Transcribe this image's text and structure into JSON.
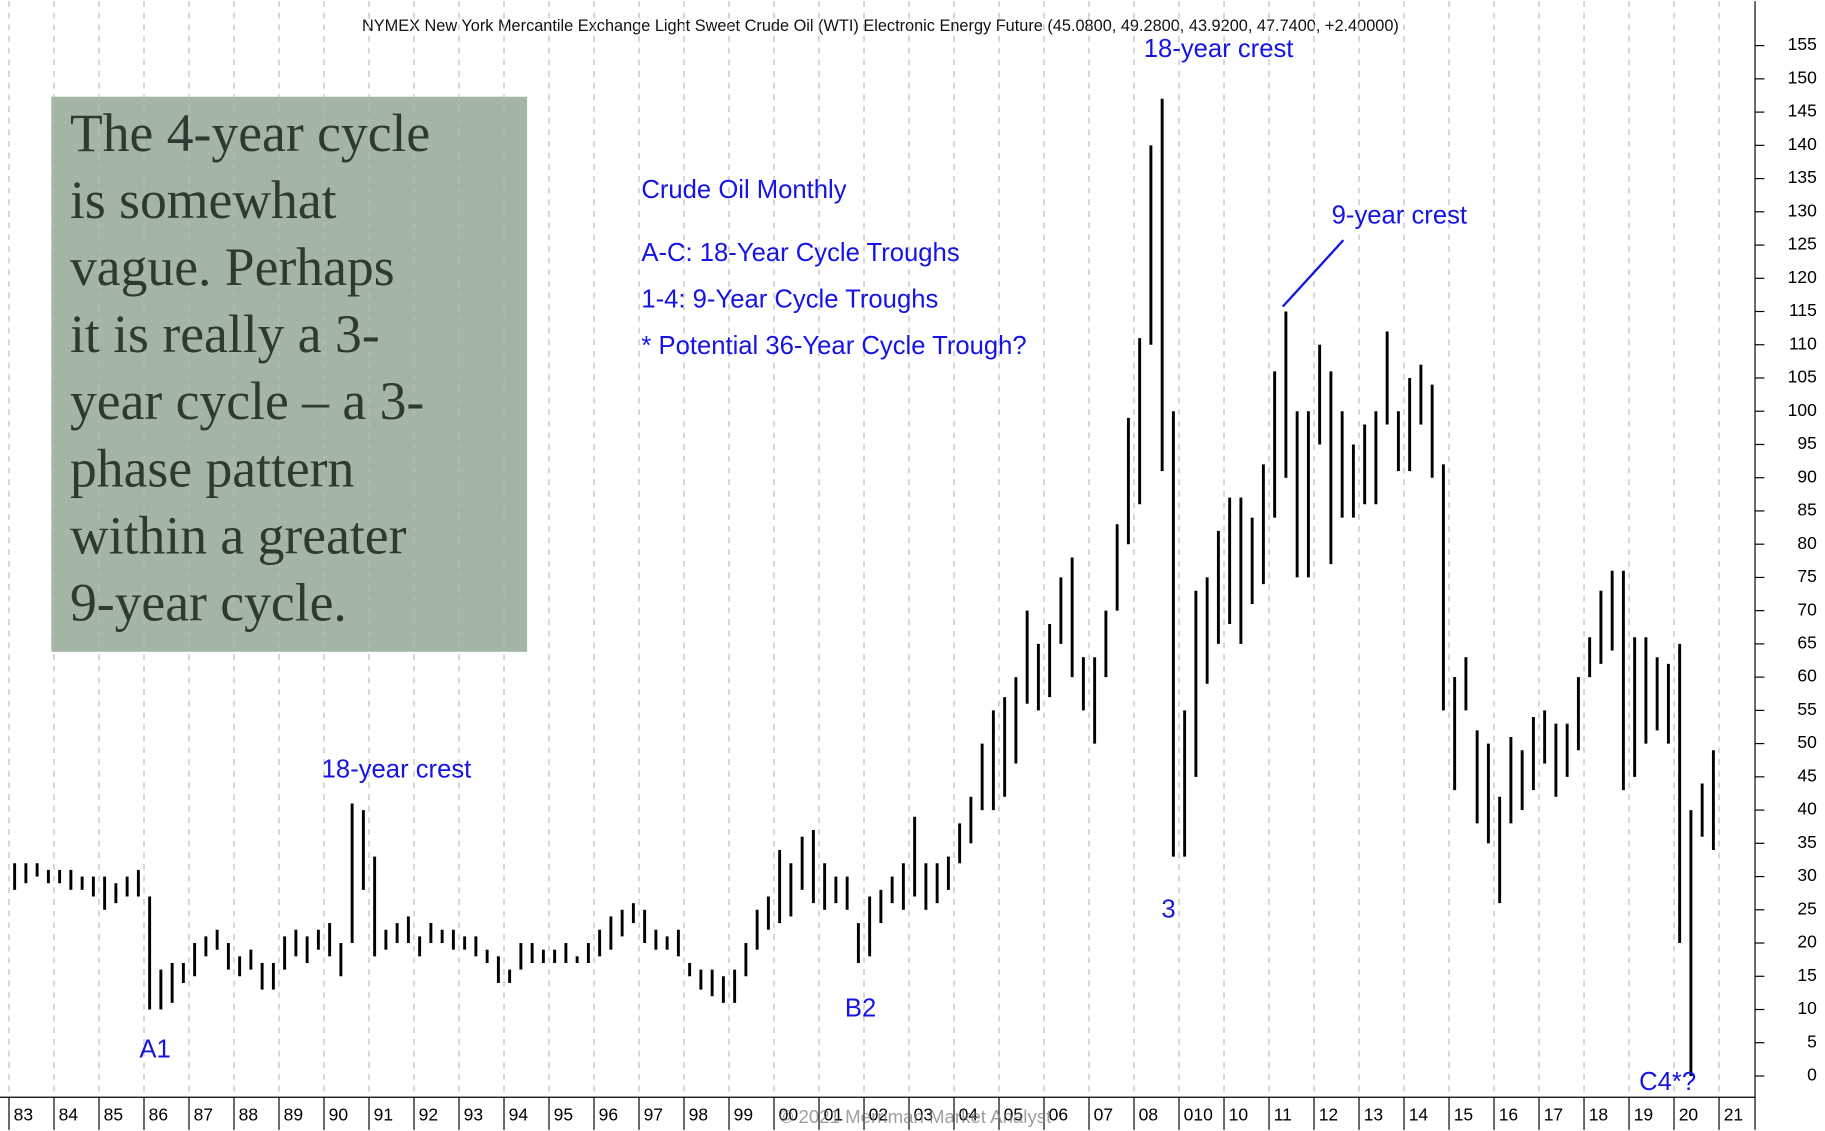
{
  "chart_data": {
    "type": "range-bar",
    "title": "NYMEX New York Mercantile Exchange Light Sweet Crude Oil (WTI) Electronic Energy Future (45.0800, 49.2800, 43.9200, 47.7400, +2.40000)",
    "legend_lines": [
      "Crude Oil Monthly",
      "A-C: 18-Year Cycle Troughs",
      "1-4: 9-Year Cycle Troughs",
      "* Potential 36-Year Cycle Trough?"
    ],
    "annotations": [
      "18-year crest",
      "18-year crest",
      "9-year crest",
      "3",
      "A1",
      "B2",
      "C4*?"
    ],
    "note_lines": [
      "The 4-year cycle",
      "is somewhat",
      "vague. Perhaps",
      "it is really a 3-",
      "year cycle – a 3-",
      "phase pattern",
      "within a greater",
      "9-year cycle."
    ],
    "watermark": "© 2021 Merriman Market Analyst",
    "color": "#000000",
    "grid": true,
    "xlim": [
      1982.8,
      2021.8
    ],
    "ylim": [
      -3.2,
      161.7
    ],
    "xticks": [
      {
        "value": 1983,
        "label": "83"
      },
      {
        "value": 1984,
        "label": "84"
      },
      {
        "value": 1985,
        "label": "85"
      },
      {
        "value": 1986,
        "label": "86"
      },
      {
        "value": 1987,
        "label": "87"
      },
      {
        "value": 1988,
        "label": "88"
      },
      {
        "value": 1989,
        "label": "89"
      },
      {
        "value": 1990,
        "label": "90"
      },
      {
        "value": 1991,
        "label": "91"
      },
      {
        "value": 1992,
        "label": "92"
      },
      {
        "value": 1993,
        "label": "93"
      },
      {
        "value": 1994,
        "label": "94"
      },
      {
        "value": 1995,
        "label": "95"
      },
      {
        "value": 1996,
        "label": "96"
      },
      {
        "value": 1997,
        "label": "97"
      },
      {
        "value": 1998,
        "label": "98"
      },
      {
        "value": 1999,
        "label": "99"
      },
      {
        "value": 2000,
        "label": "00"
      },
      {
        "value": 2001,
        "label": "01"
      },
      {
        "value": 2002,
        "label": "02"
      },
      {
        "value": 2003,
        "label": "03"
      },
      {
        "value": 2004,
        "label": "04"
      },
      {
        "value": 2005,
        "label": "05"
      },
      {
        "value": 2006,
        "label": "06"
      },
      {
        "value": 2007,
        "label": "07"
      },
      {
        "value": 2008,
        "label": "08"
      },
      {
        "value": 2009,
        "label": "010"
      },
      {
        "value": 2010,
        "label": "10"
      },
      {
        "value": 2011,
        "label": "11"
      },
      {
        "value": 2012,
        "label": "12"
      },
      {
        "value": 2013,
        "label": "13"
      },
      {
        "value": 2014,
        "label": "14"
      },
      {
        "value": 2015,
        "label": "15"
      },
      {
        "value": 2016,
        "label": "16"
      },
      {
        "value": 2017,
        "label": "17"
      },
      {
        "value": 2018,
        "label": "18"
      },
      {
        "value": 2019,
        "label": "19"
      },
      {
        "value": 2020,
        "label": "20"
      },
      {
        "value": 2021,
        "label": "21"
      }
    ],
    "yticks": [
      0,
      5,
      10,
      15,
      20,
      25,
      30,
      35,
      40,
      45,
      50,
      55,
      60,
      65,
      70,
      75,
      80,
      85,
      90,
      95,
      100,
      105,
      110,
      115,
      120,
      125,
      130,
      135,
      140,
      145,
      150,
      155
    ],
    "x": [
      1983.125,
      1983.375,
      1983.625,
      1983.875,
      1984.125,
      1984.375,
      1984.625,
      1984.875,
      1985.125,
      1985.375,
      1985.625,
      1985.875,
      1986.125,
      1986.375,
      1986.625,
      1986.875,
      1987.125,
      1987.375,
      1987.625,
      1987.875,
      1988.125,
      1988.375,
      1988.625,
      1988.875,
      1989.125,
      1989.375,
      1989.625,
      1989.875,
      1990.125,
      1990.375,
      1990.625,
      1990.875,
      1991.125,
      1991.375,
      1991.625,
      1991.875,
      1992.125,
      1992.375,
      1992.625,
      1992.875,
      1993.125,
      1993.375,
      1993.625,
      1993.875,
      1994.125,
      1994.375,
      1994.625,
      1994.875,
      1995.125,
      1995.375,
      1995.625,
      1995.875,
      1996.125,
      1996.375,
      1996.625,
      1996.875,
      1997.125,
      1997.375,
      1997.625,
      1997.875,
      1998.125,
      1998.375,
      1998.625,
      1998.875,
      1999.125,
      1999.375,
      1999.625,
      1999.875,
      2000.125,
      2000.375,
      2000.625,
      2000.875,
      2001.125,
      2001.375,
      2001.625,
      2001.875,
      2002.125,
      2002.375,
      2002.625,
      2002.875,
      2003.125,
      2003.375,
      2003.625,
      2003.875,
      2004.125,
      2004.375,
      2004.625,
      2004.875,
      2005.125,
      2005.375,
      2005.625,
      2005.875,
      2006.125,
      2006.375,
      2006.625,
      2006.875,
      2007.125,
      2007.375,
      2007.625,
      2007.875,
      2008.125,
      2008.375,
      2008.625,
      2008.875,
      2009.125,
      2009.375,
      2009.625,
      2009.875,
      2010.125,
      2010.375,
      2010.625,
      2010.875,
      2011.125,
      2011.375,
      2011.625,
      2011.875,
      2012.125,
      2012.375,
      2012.625,
      2012.875,
      2013.125,
      2013.375,
      2013.625,
      2013.875,
      2014.125,
      2014.375,
      2014.625,
      2014.875,
      2015.125,
      2015.375,
      2015.625,
      2015.875,
      2016.125,
      2016.375,
      2016.625,
      2016.875,
      2017.125,
      2017.375,
      2017.625,
      2017.875,
      2018.125,
      2018.375,
      2018.625,
      2018.875,
      2019.125,
      2019.375,
      2019.625,
      2019.875,
      2020.125,
      2020.375,
      2020.625,
      2020.875
    ],
    "low": [
      28,
      29,
      30,
      29,
      29,
      28,
      28,
      27,
      25,
      26,
      27,
      27,
      10,
      10,
      11,
      14,
      15,
      18,
      19,
      16,
      15,
      16,
      13,
      13,
      16,
      18,
      17,
      19,
      18,
      15,
      20,
      28,
      18,
      19,
      20,
      20,
      18,
      20,
      20,
      19,
      19,
      18,
      17,
      14,
      14,
      16,
      17,
      17,
      17,
      17,
      17,
      17,
      18,
      19,
      21,
      23,
      20,
      19,
      19,
      18,
      15,
      13,
      12,
      11,
      11,
      15,
      19,
      22,
      23,
      24,
      28,
      26,
      25,
      26,
      25,
      17,
      18,
      23,
      26,
      25,
      27,
      25,
      26,
      28,
      32,
      35,
      40,
      40,
      42,
      47,
      56,
      55,
      57,
      65,
      60,
      55,
      50,
      60,
      70,
      80,
      86,
      110,
      91,
      33,
      33,
      45,
      59,
      65,
      68,
      65,
      71,
      74,
      84,
      90,
      75,
      75,
      95,
      77,
      84,
      84,
      86,
      86,
      98,
      91,
      91,
      98,
      90,
      55,
      43,
      55,
      38,
      35,
      26,
      38,
      40,
      43,
      47,
      42,
      45,
      49,
      60,
      62,
      64,
      43,
      45,
      50,
      52,
      50,
      20,
      0,
      36,
      34
    ],
    "high": [
      32,
      32,
      32,
      31,
      31,
      31,
      30,
      30,
      30,
      29,
      30,
      31,
      27,
      16,
      17,
      17,
      20,
      21,
      22,
      20,
      18,
      19,
      17,
      17,
      21,
      22,
      21,
      22,
      23,
      20,
      41,
      40,
      33,
      22,
      23,
      24,
      21,
      23,
      22,
      22,
      21,
      21,
      19,
      18,
      16,
      20,
      20,
      19,
      19,
      20,
      18,
      20,
      22,
      24,
      25,
      26,
      25,
      22,
      21,
      22,
      17,
      16,
      16,
      15,
      16,
      20,
      25,
      27,
      34,
      32,
      36,
      37,
      32,
      30,
      30,
      23,
      27,
      28,
      30,
      32,
      39,
      32,
      32,
      33,
      38,
      42,
      50,
      55,
      57,
      60,
      70,
      65,
      68,
      75,
      78,
      63,
      63,
      70,
      83,
      99,
      111,
      140,
      147,
      100,
      55,
      73,
      75,
      82,
      87,
      87,
      84,
      92,
      106,
      115,
      100,
      100,
      110,
      106,
      100,
      95,
      98,
      100,
      112,
      100,
      105,
      107,
      104,
      92,
      60,
      63,
      52,
      50,
      42,
      51,
      49,
      54,
      55,
      53,
      53,
      60,
      66,
      73,
      76,
      76,
      66,
      66,
      63,
      62,
      65,
      40,
      44,
      49
    ]
  }
}
